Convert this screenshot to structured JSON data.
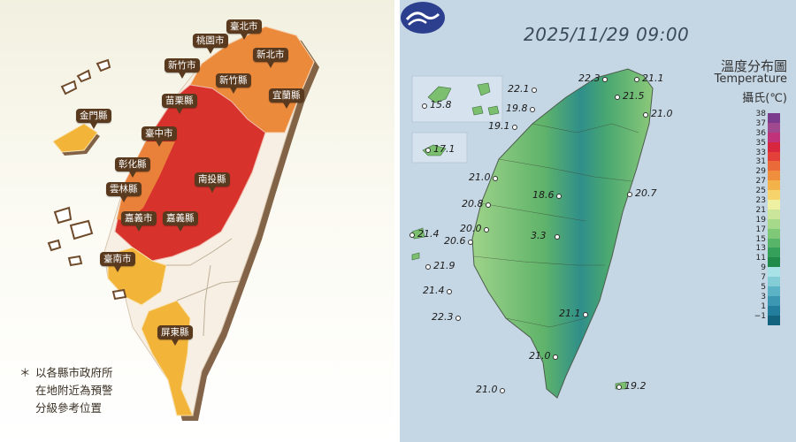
{
  "left_panel": {
    "labels": [
      {
        "text": "臺北市",
        "level": "orange"
      },
      {
        "text": "桃園市",
        "level": "orange"
      },
      {
        "text": "新北市",
        "level": "orange"
      },
      {
        "text": "新竹市",
        "level": "orange"
      },
      {
        "text": "新竹縣",
        "level": "red"
      },
      {
        "text": "宜蘭縣",
        "level": "orange"
      },
      {
        "text": "苗栗縣",
        "level": "red"
      },
      {
        "text": "金門縣",
        "level": "yellow"
      },
      {
        "text": "臺中市",
        "level": "red"
      },
      {
        "text": "彰化縣",
        "level": "orange"
      },
      {
        "text": "南投縣",
        "level": "red"
      },
      {
        "text": "雲林縣",
        "level": "red"
      },
      {
        "text": "嘉義市",
        "level": "red"
      },
      {
        "text": "嘉義縣",
        "level": "red"
      },
      {
        "text": "臺南市",
        "level": "yellow"
      },
      {
        "text": "屏東縣",
        "level": "yellow"
      }
    ],
    "note": {
      "star": "＊",
      "lines": [
        "以各縣市政府所",
        "在地附近為預警",
        "分級參考位置"
      ]
    },
    "colors": {
      "red": "#d7322c",
      "orange": "#ec8a3c",
      "yellow": "#f3b43a",
      "land": "#f7efe3",
      "shadow": "#6e4a2a"
    }
  },
  "right_panel": {
    "timestamp": "2025/11/29 09:00",
    "title_zh": "溫度分布圖",
    "title_en": "Temperature",
    "unit": "攝氏(℃)",
    "legend_ticks": [
      "38",
      "37",
      "36",
      "35",
      "33",
      "31",
      "29",
      "27",
      "25",
      "23",
      "21",
      "19",
      "17",
      "15",
      "13",
      "11",
      "9",
      "7",
      "5",
      "3",
      "1",
      "−1"
    ],
    "legend_colors": [
      "#7b3c8e",
      "#a0498f",
      "#c0337a",
      "#d9263f",
      "#e4403a",
      "#ea6a3a",
      "#ef8e3c",
      "#f4b24a",
      "#f6d36b",
      "#eef0a2",
      "#cbe69a",
      "#a6d98a",
      "#7fc878",
      "#57b468",
      "#34a05a",
      "#1f8a4a",
      "#a9e2e6",
      "#84ccd6",
      "#5db3c6",
      "#3b97b2",
      "#237d9d",
      "#13637f"
    ],
    "stations": [
      {
        "value": "21.1"
      },
      {
        "value": "22.3"
      },
      {
        "value": "22.1"
      },
      {
        "value": "21.5"
      },
      {
        "value": "19.8"
      },
      {
        "value": "21.0"
      },
      {
        "value": "15.8"
      },
      {
        "value": "19.1"
      },
      {
        "value": "17.1"
      },
      {
        "value": "21.0"
      },
      {
        "value": "18.6"
      },
      {
        "value": "20.7"
      },
      {
        "value": "20.8"
      },
      {
        "value": "20.0"
      },
      {
        "value": "3.3"
      },
      {
        "value": "21.4"
      },
      {
        "value": "20.6"
      },
      {
        "value": "21.9"
      },
      {
        "value": "21.4"
      },
      {
        "value": "22.3"
      },
      {
        "value": "21.1"
      },
      {
        "value": "21.0"
      },
      {
        "value": "21.0"
      },
      {
        "value": "19.2"
      }
    ]
  }
}
